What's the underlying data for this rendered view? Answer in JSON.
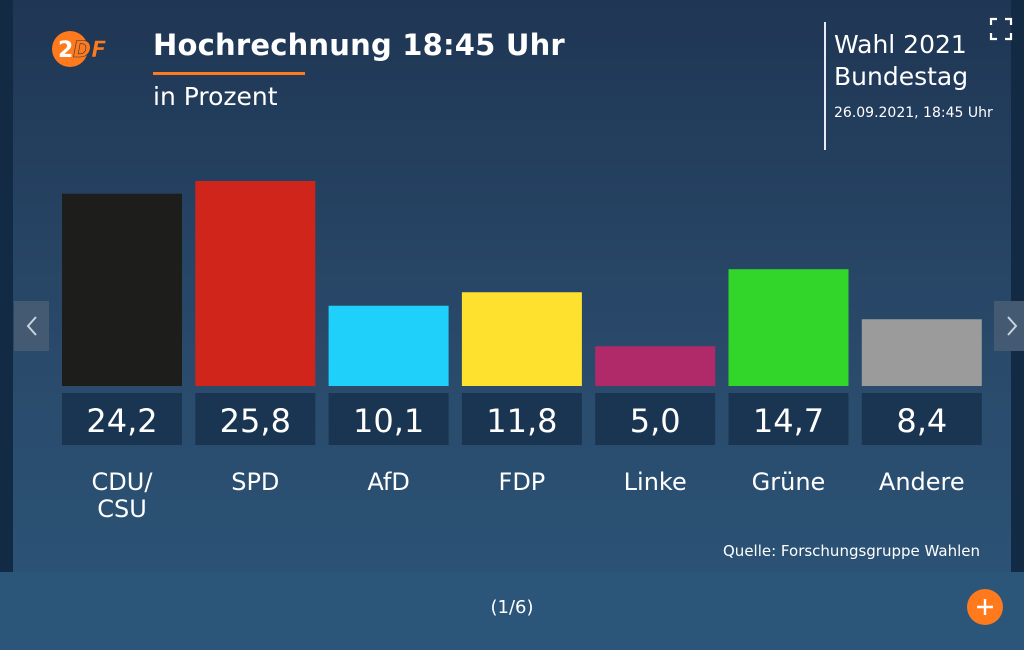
{
  "logo": {
    "text": "2DF",
    "icon": "zdf-logo",
    "color": "#ff7a1c"
  },
  "header": {
    "title": "Hochrechnung 18:45 Uhr",
    "subtitle": "in Prozent"
  },
  "info": {
    "line1": "Wahl 2021",
    "line2": "Bundestag",
    "date": "26.09.2021, 18:45 Uhr"
  },
  "controls": {
    "fullscreen_icon": "fullscreen-icon",
    "prev_icon": "chevron-left-icon",
    "next_icon": "chevron-right-icon",
    "add_icon": "plus-icon"
  },
  "chart_data": {
    "type": "bar",
    "title": "Hochrechnung 18:45 Uhr",
    "subtitle": "in Prozent",
    "categories": [
      "CDU/ CSU",
      "SPD",
      "AfD",
      "FDP",
      "Linke",
      "Grüne",
      "Andere"
    ],
    "values": [
      24.2,
      25.8,
      10.1,
      11.8,
      5.0,
      14.7,
      8.4
    ],
    "value_labels": [
      "24,2",
      "25,8",
      "10,1",
      "11,8",
      "5,0",
      "14,7",
      "8,4"
    ],
    "colors": [
      "#1d1d1b",
      "#d0251b",
      "#1ed0fa",
      "#fde12e",
      "#b02a6a",
      "#32d62b",
      "#9b9b9b"
    ],
    "ylim": [
      0,
      25.8
    ],
    "xlabel": "",
    "ylabel": "",
    "grid": false,
    "legend": "none"
  },
  "source": "Quelle: Forschungsgruppe Wahlen",
  "pager": "(1/6)"
}
